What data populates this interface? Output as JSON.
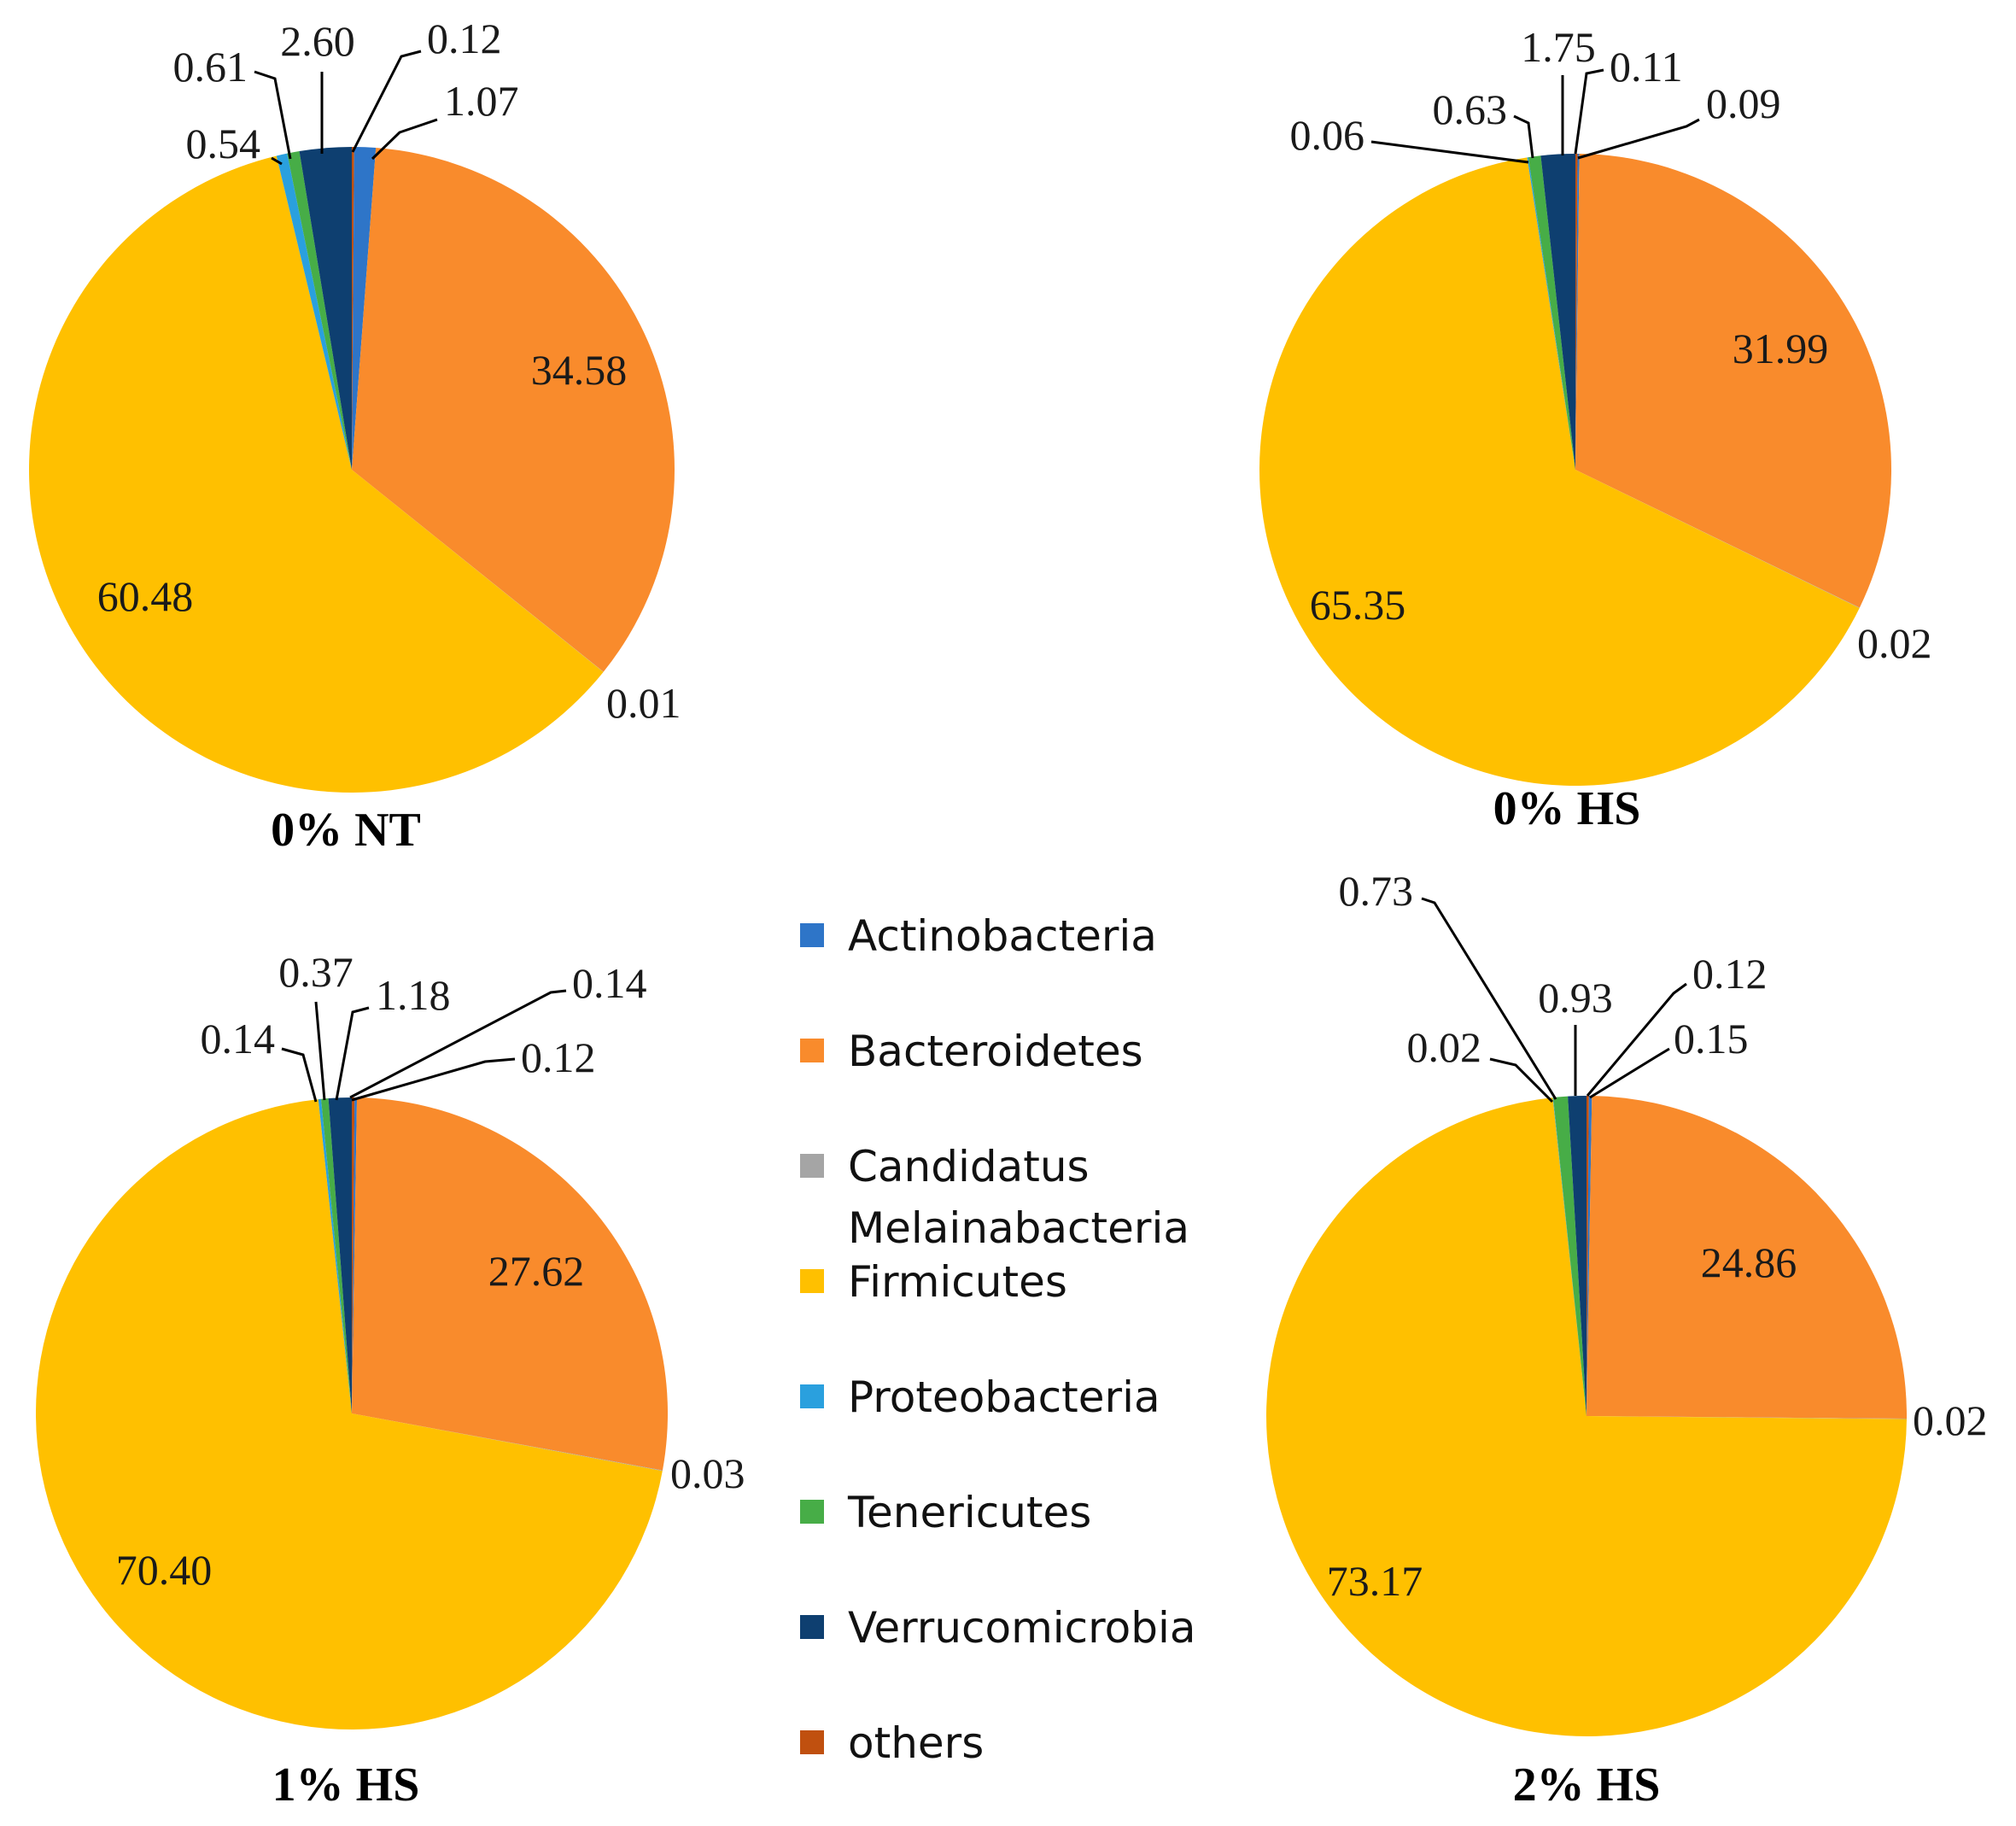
{
  "chart_data": {
    "type": "pie",
    "categories": [
      "Actinobacteria",
      "Bacteroidetes",
      "Candidatus Melainabacteria",
      "Firmicutes",
      "Proteobacteria",
      "Tenericutes",
      "Verrucomicrobia",
      "others"
    ],
    "legend": {
      "entries": [
        {
          "lines": [
            "Actinobacteria"
          ],
          "color": "#2e75c8"
        },
        {
          "lines": [
            "Bacteroidetes"
          ],
          "color": "#f98b2c"
        },
        {
          "lines": [
            "Candidatus",
            "Melainabacteria"
          ],
          "color": "#a5a5a5"
        },
        {
          "lines": [
            "Firmicutes"
          ],
          "color": "#ffc000"
        },
        {
          "lines": [
            "Proteobacteria"
          ],
          "color": "#2aa0de"
        },
        {
          "lines": [
            "Tenericutes"
          ],
          "color": "#47ad47"
        },
        {
          "lines": [
            "Verrucomicrobia"
          ],
          "color": "#0e3f70"
        },
        {
          "lines": [
            "others"
          ],
          "color": "#c0500f"
        }
      ],
      "placement": "center"
    },
    "charts": [
      {
        "title": "0% NT",
        "slices": [
          {
            "category": "Actinobacteria",
            "value": 1.07,
            "label": "1.07"
          },
          {
            "category": "Bacteroidetes",
            "value": 34.58,
            "label": "34.58"
          },
          {
            "category": "Candidatus Melainabacteria",
            "value": 0.01,
            "label": "0.01"
          },
          {
            "category": "Firmicutes",
            "value": 60.48,
            "label": "60.48"
          },
          {
            "category": "Proteobacteria",
            "value": 0.54,
            "label": "0.54"
          },
          {
            "category": "Tenericutes",
            "value": 0.61,
            "label": "0.61"
          },
          {
            "category": "Verrucomicrobia",
            "value": 2.6,
            "label": "2.60"
          },
          {
            "category": "others",
            "value": 0.12,
            "label": "0.12"
          }
        ]
      },
      {
        "title": "0% HS",
        "slices": [
          {
            "category": "Actinobacteria",
            "value": 0.09,
            "label": "0.09"
          },
          {
            "category": "Bacteroidetes",
            "value": 31.99,
            "label": "31.99"
          },
          {
            "category": "Candidatus Melainabacteria",
            "value": 0.02,
            "label": "0.02"
          },
          {
            "category": "Firmicutes",
            "value": 65.35,
            "label": "65.35"
          },
          {
            "category": "Proteobacteria",
            "value": 0.06,
            "label": "0.06"
          },
          {
            "category": "Tenericutes",
            "value": 0.63,
            "label": "0.63"
          },
          {
            "category": "Verrucomicrobia",
            "value": 1.75,
            "label": "1.75"
          },
          {
            "category": "others",
            "value": 0.11,
            "label": "0.11"
          }
        ]
      },
      {
        "title": "1% HS",
        "slices": [
          {
            "category": "Actinobacteria",
            "value": 0.12,
            "label": "0.12"
          },
          {
            "category": "Bacteroidetes",
            "value": 27.62,
            "label": "27.62"
          },
          {
            "category": "Candidatus Melainabacteria",
            "value": 0.03,
            "label": "0.03"
          },
          {
            "category": "Firmicutes",
            "value": 70.4,
            "label": "70.40"
          },
          {
            "category": "Proteobacteria",
            "value": 0.14,
            "label": "0.14"
          },
          {
            "category": "Tenericutes",
            "value": 0.37,
            "label": "0.37"
          },
          {
            "category": "Verrucomicrobia",
            "value": 1.18,
            "label": "1.18"
          },
          {
            "category": "others",
            "value": 0.14,
            "label": "0.14"
          }
        ]
      },
      {
        "title": "2% HS",
        "slices": [
          {
            "category": "Actinobacteria",
            "value": 0.15,
            "label": "0.15"
          },
          {
            "category": "Bacteroidetes",
            "value": 24.86,
            "label": "24.86"
          },
          {
            "category": "Candidatus Melainabacteria",
            "value": 0.02,
            "label": "0.02"
          },
          {
            "category": "Firmicutes",
            "value": 73.17,
            "label": "73.17"
          },
          {
            "category": "Proteobacteria",
            "value": 0.02,
            "label": "0.02"
          },
          {
            "category": "Tenericutes",
            "value": 0.73,
            "label": "0.73"
          },
          {
            "category": "Verrucomicrobia",
            "value": 0.93,
            "label": "0.93"
          },
          {
            "category": "others",
            "value": 0.12,
            "label": "0.12"
          }
        ]
      }
    ]
  }
}
